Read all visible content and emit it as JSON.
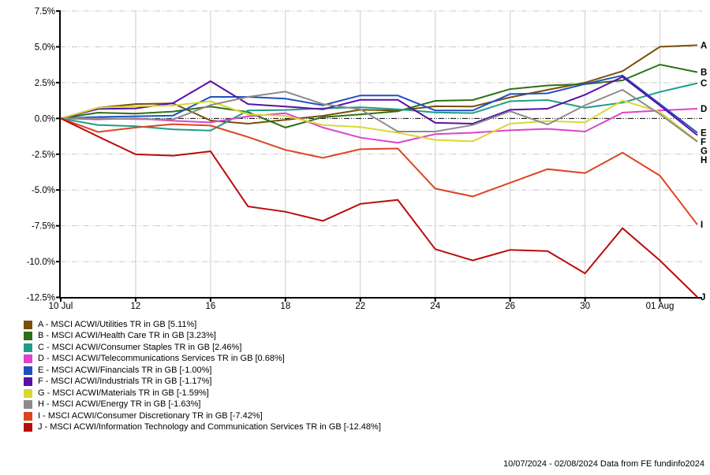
{
  "footer": {
    "text": "10/07/2024 - 02/08/2024 Data from FE fundinfo2024"
  },
  "chart_data": {
    "type": "line",
    "title": "",
    "n_points": 18,
    "ylim": [
      -12.5,
      7.5
    ],
    "grid": true,
    "legend_position": "bottom-left",
    "y_ticks": [
      {
        "value": 7.5,
        "label": "7.5%"
      },
      {
        "value": 5.0,
        "label": "5.0%"
      },
      {
        "value": 2.5,
        "label": "2.5%"
      },
      {
        "value": 0.0,
        "label": "0.0%"
      },
      {
        "value": -2.5,
        "label": "-2.5%"
      },
      {
        "value": -5.0,
        "label": "-5.0%"
      },
      {
        "value": -7.5,
        "label": "-7.5%"
      },
      {
        "value": -10.0,
        "label": "-10.0%"
      },
      {
        "value": -12.5,
        "label": "-12.5%"
      }
    ],
    "x_ticks": [
      {
        "index": 0,
        "label": "10 Jul"
      },
      {
        "index": 2,
        "label": "12"
      },
      {
        "index": 4,
        "label": "16"
      },
      {
        "index": 6,
        "label": "18"
      },
      {
        "index": 8,
        "label": "22"
      },
      {
        "index": 10,
        "label": "24"
      },
      {
        "index": 12,
        "label": "26"
      },
      {
        "index": 14,
        "label": "30"
      },
      {
        "index": 16,
        "label": "01 Aug"
      }
    ],
    "series": [
      {
        "id": "A",
        "name": "MSCI ACWI/Utilities TR in GB",
        "final_return": "5.11%",
        "color": "#7A4F08",
        "legend_label": "A - MSCI ACWI/Utilities TR in GB [5.11%]",
        "values": [
          0,
          0.75,
          1.0,
          1.05,
          -0.15,
          -0.37,
          -0.1,
          0.18,
          0.6,
          0.55,
          0.85,
          0.83,
          1.47,
          2.0,
          2.5,
          3.3,
          5.0,
          5.11
        ]
      },
      {
        "id": "B",
        "name": "MSCI ACWI/Health Care TR in GB",
        "final_return": "3.23%",
        "color": "#2F7016",
        "legend_label": "B - MSCI ACWI/Health Care TR in GB [3.23%]",
        "values": [
          0,
          0.4,
          0.33,
          0.48,
          0.83,
          0.44,
          -0.64,
          0.09,
          0.28,
          0.5,
          1.23,
          1.28,
          2.05,
          2.3,
          2.4,
          2.66,
          3.76,
          3.23
        ]
      },
      {
        "id": "C",
        "name": "MSCI ACWI/Consumer Staples TR in GB",
        "final_return": "2.46%",
        "color": "#1F9E86",
        "legend_label": "C - MSCI ACWI/Consumer Staples TR in GB [2.46%]",
        "values": [
          0,
          -0.46,
          -0.55,
          -0.77,
          -0.85,
          0.55,
          0.59,
          0.7,
          0.78,
          0.64,
          0.42,
          0.37,
          1.2,
          1.28,
          0.75,
          1.1,
          1.85,
          2.46
        ]
      },
      {
        "id": "D",
        "name": "MSCI ACWI/Telecommunications Services TR in GB",
        "final_return": "0.68%",
        "color": "#DD44CC",
        "legend_label": "D - MSCI ACWI/Telecommunications Services TR in GB [0.68%]",
        "values": [
          0,
          -0.07,
          0.0,
          -0.17,
          -0.28,
          0.14,
          0.37,
          -0.64,
          -1.34,
          -1.7,
          -1.1,
          -1.0,
          -0.83,
          -0.73,
          -0.92,
          0.4,
          0.55,
          0.68
        ]
      },
      {
        "id": "E",
        "name": "MSCI ACWI/Financials TR in GB",
        "final_return": "-1.00%",
        "color": "#2050C0",
        "legend_label": "E - MSCI ACWI/Financials TR in GB [-1.00%]",
        "values": [
          0,
          0.1,
          0.15,
          0.2,
          1.5,
          1.5,
          1.38,
          0.92,
          1.6,
          1.6,
          0.55,
          0.55,
          1.7,
          1.75,
          2.4,
          3.0,
          1.0,
          -1.0
        ]
      },
      {
        "id": "F",
        "name": "MSCI ACWI/Industrials TR in GB",
        "final_return": "-1.17%",
        "color": "#5A10A8",
        "legend_label": "F - MSCI ACWI/Industrials TR in GB [-1.17%]",
        "values": [
          0,
          0.66,
          0.7,
          1.07,
          2.6,
          1.0,
          0.83,
          0.64,
          1.3,
          1.3,
          -0.31,
          -0.37,
          0.6,
          0.68,
          1.65,
          2.9,
          0.9,
          -1.17
        ]
      },
      {
        "id": "G",
        "name": "MSCI ACWI/Materials TR in GB",
        "final_return": "-1.59%",
        "color": "#D8D836",
        "legend_label": "G - MSCI ACWI/Materials TR in GB [-1.59%]",
        "values": [
          0,
          0.75,
          0.85,
          0.9,
          1.2,
          0.28,
          0.18,
          -0.46,
          -0.6,
          -1.0,
          -1.5,
          -1.6,
          -0.37,
          -0.18,
          -0.28,
          1.25,
          0.45,
          -1.59
        ]
      },
      {
        "id": "H",
        "name": "MSCI ACWI/Energy TR in GB",
        "final_return": "-1.63%",
        "color": "#8C8C8C",
        "legend_label": "H - MSCI ACWI/Energy TR in GB [-1.63%]",
        "values": [
          0,
          0.0,
          -0.05,
          -0.07,
          0.93,
          1.5,
          1.87,
          1.0,
          0.64,
          -0.92,
          -0.92,
          -0.46,
          0.5,
          -0.43,
          0.92,
          2.0,
          0.3,
          -1.63
        ]
      },
      {
        "id": "I",
        "name": "MSCI ACWI/Consumer Discretionary TR in GB",
        "final_return": "-7.42%",
        "color": "#DD4422",
        "legend_label": "I - MSCI ACWI/Consumer Discretionary TR in GB [-7.42%]",
        "values": [
          0,
          -0.95,
          -0.64,
          -0.4,
          -0.5,
          -1.3,
          -2.2,
          -2.75,
          -2.15,
          -2.1,
          -4.9,
          -5.45,
          -4.5,
          -3.54,
          -3.82,
          -2.39,
          -4.0,
          -7.42
        ]
      },
      {
        "id": "J",
        "name": "MSCI ACWI/Information Technology and Communication Services TR in GB",
        "final_return": "-12.48%",
        "color": "#BB0B0B",
        "legend_label": "J - MSCI ACWI/Information Technology and Communication Services TR in GB [-12.48%]",
        "values": [
          0,
          -1.27,
          -2.51,
          -2.6,
          -2.3,
          -6.15,
          -6.52,
          -7.16,
          -5.97,
          -5.69,
          -9.13,
          -9.92,
          -9.18,
          -9.27,
          -10.83,
          -7.67,
          -9.92,
          -12.48
        ]
      }
    ]
  }
}
